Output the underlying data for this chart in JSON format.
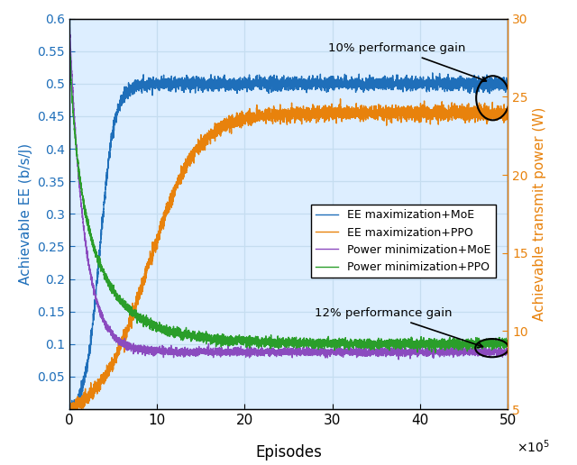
{
  "xlabel": "Episodes",
  "ylabel_left": "Achievable EE (b/s/J)",
  "ylabel_right": "Achievable transmit power (W)",
  "xlim": [
    0,
    500000
  ],
  "ylim_left": [
    0,
    0.6
  ],
  "ylim_right": [
    5,
    30
  ],
  "xticks": [
    0,
    100000,
    200000,
    300000,
    400000,
    500000
  ],
  "xticklabels": [
    "0",
    "10",
    "20",
    "30",
    "40",
    "50"
  ],
  "yticks_left": [
    0,
    0.05,
    0.1,
    0.15,
    0.2,
    0.25,
    0.3,
    0.35,
    0.4,
    0.45,
    0.5,
    0.55,
    0.6
  ],
  "ytick_labels_left": [
    "",
    "0.05",
    "0.1",
    "0.15",
    "0.2",
    "0.25",
    "0.3",
    "0.35",
    "0.4",
    "0.45",
    "0.5",
    "0.55",
    "0.6"
  ],
  "yticks_right": [
    5,
    10,
    15,
    20,
    25,
    30
  ],
  "color_blue": "#1f6fba",
  "color_orange": "#e8820c",
  "color_purple": "#8b4bbf",
  "color_green": "#2a9e2a",
  "legend_labels": [
    "EE maximization+MoE",
    "EE maximization+PPO",
    "Power minimization+MoE",
    "Power minimization+PPO"
  ],
  "annotation1_text": "10% performance gain",
  "annotation2_text": "12% performance gain",
  "n_points": 5000,
  "seed": 42,
  "background_color": "#ddeeff",
  "fig_background": "#ffffff",
  "grid_color": "#c5ddf0"
}
